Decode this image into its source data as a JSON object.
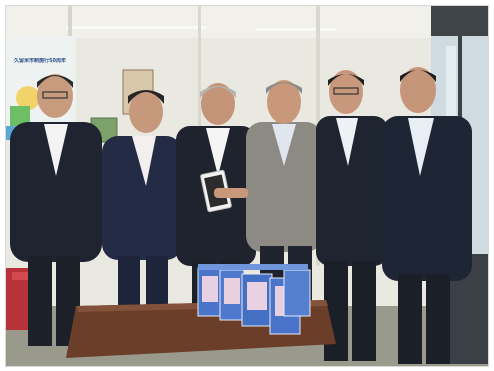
{
  "photo": {
    "poster_text": "久留米市制施行50周年",
    "colors": {
      "wall": "#e9e8e1",
      "ceiling": "#f1f0ea",
      "window": "#cfdbe0",
      "floor": "#9a9a8c",
      "table": "#6b3e29",
      "suit_dark": "#1f2530",
      "suit_navy": "#232c44",
      "suit_grey": "#8d8a84",
      "skin": "#c89a7e",
      "box_blue": "#4a74c9"
    }
  }
}
